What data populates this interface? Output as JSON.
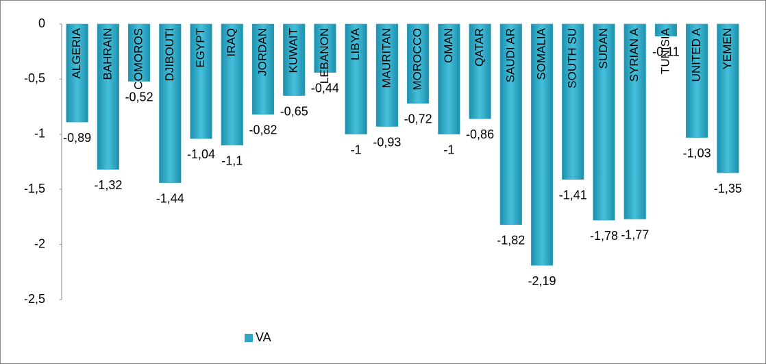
{
  "chart_data": {
    "type": "bar",
    "categories": [
      "ALGERIA",
      "BAHRAIN",
      "COMOROS",
      "DJIBOUTI",
      "EGYPT",
      "IRAQ",
      "JORDAN",
      "KUWAIT",
      "LEBANON",
      "LIBYA",
      "MAURITAN",
      "MOROCCO",
      "OMAN",
      "QATAR",
      "SAUDI AR",
      "SOMALIA",
      "SOUTH SU",
      "SUDAN",
      "SYRIAN A",
      "TUNISIA",
      "UNITED A",
      "YEMEN"
    ],
    "series": [
      {
        "name": "VA",
        "color": "#2fa7c3",
        "values": [
          -0.89,
          -1.32,
          -0.52,
          -1.44,
          -1.04,
          -1.1,
          -0.82,
          -0.65,
          -0.44,
          -1,
          -0.93,
          -0.72,
          -1,
          -0.86,
          -1.82,
          -2.19,
          -1.41,
          -1.78,
          -1.77,
          -0.11,
          -1.03,
          -1.35
        ],
        "value_labels": [
          "-0,89",
          "-1,32",
          "-0,52",
          "-1,44",
          "-1,04",
          "-1,1",
          "-0,82",
          "-0,65",
          "-0,44",
          "-1",
          "-0,93",
          "-0,72",
          "-1",
          "-0,86",
          "-1,82",
          "-2,19",
          "-1,41",
          "-1,78",
          "-1,77",
          "-0,11",
          "-1,03",
          "-1,35"
        ]
      }
    ],
    "ylim": [
      -2.5,
      0
    ],
    "yticks": [
      0,
      {
        "value": -0.5,
        "label": "-0,5"
      },
      -1,
      {
        "value": -1.5,
        "label": "-1,5"
      },
      -2,
      {
        "value": -2.5,
        "label": "-2,5"
      }
    ],
    "legend": "bottom"
  }
}
